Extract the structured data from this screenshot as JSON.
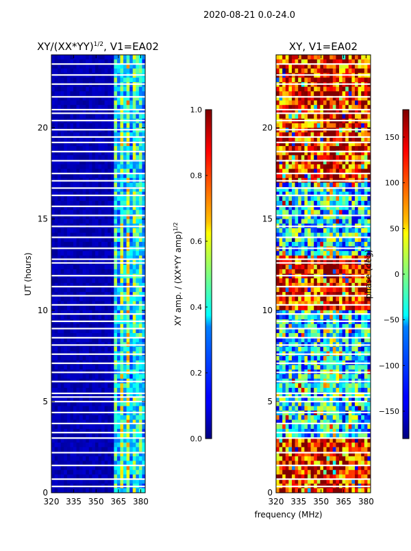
{
  "figure_title": "2020-08-21 0.0-24.0",
  "chart_data": [
    {
      "type": "heatmap",
      "title": "XY/(XX*YY)^{1/2}, V1=EA02",
      "title_main": "XY/(XX*YY)",
      "title_sup": "1/2",
      "title_tail": ", V1=EA02",
      "xlabel": "",
      "ylabel": "UT (hours)",
      "xlim": [
        320,
        383
      ],
      "ylim": [
        0,
        24
      ],
      "xticks": [
        320,
        335,
        350,
        365,
        380
      ],
      "yticks": [
        0,
        5,
        10,
        15,
        20
      ],
      "colormap": "jet",
      "colorbar": {
        "label": "XY amp. / (XX*YY amp)^{1/2}",
        "label_main": "XY amp. / (XX*YY amp)",
        "label_sup": "1/2",
        "range": [
          0.0,
          1.0
        ],
        "ticks": [
          "0.0",
          "0.2",
          "0.4",
          "0.6",
          "0.8",
          "1.0"
        ]
      },
      "gaps_hours": [
        0.35,
        0.75,
        1.5,
        2.2,
        3.0,
        3.3,
        3.8,
        4.4,
        5.0,
        5.25,
        5.45,
        6.1,
        6.6,
        7.1,
        7.6,
        8.1,
        8.5,
        9.0,
        9.4,
        9.8,
        10.3,
        10.8,
        11.3,
        11.9,
        12.6,
        12.8,
        13.4,
        14.0,
        14.6,
        15.2,
        15.7,
        16.3,
        16.7,
        17.1,
        17.5,
        18.2,
        18.7,
        19.2,
        19.5,
        19.9,
        20.4,
        20.8,
        21.0,
        21.7,
        22.4,
        22.9,
        23.5
      ]
    },
    {
      "type": "heatmap",
      "title": "XY, V1=EA02",
      "xlabel": "frequency (MHz)",
      "ylabel": "",
      "xlim": [
        320,
        383
      ],
      "ylim": [
        0,
        24
      ],
      "xticks": [
        320,
        335,
        350,
        365,
        380
      ],
      "yticks": [
        0,
        5,
        10,
        15,
        20
      ],
      "colormap": "jet",
      "colorbar": {
        "label": "phase (deg)",
        "range": [
          -180,
          180
        ],
        "ticks": [
          "−150",
          "−100",
          "−50",
          "0",
          "50",
          "100",
          "150"
        ],
        "tick_values": [
          -150,
          -100,
          -50,
          0,
          50,
          100,
          150
        ]
      },
      "gaps_hours": [
        0.35,
        0.75,
        1.5,
        2.2,
        3.0,
        3.3,
        3.8,
        4.4,
        5.0,
        5.25,
        5.45,
        6.1,
        6.6,
        7.1,
        7.6,
        8.1,
        8.5,
        9.0,
        9.4,
        9.8,
        10.3,
        10.8,
        11.3,
        11.9,
        12.6,
        12.8,
        13.4,
        14.0,
        14.6,
        15.2,
        15.7,
        16.3,
        16.7,
        17.1,
        17.5,
        18.2,
        18.7,
        19.2,
        19.5,
        19.9,
        20.4,
        20.8,
        21.0,
        21.7,
        22.4,
        22.9,
        23.5
      ]
    }
  ]
}
